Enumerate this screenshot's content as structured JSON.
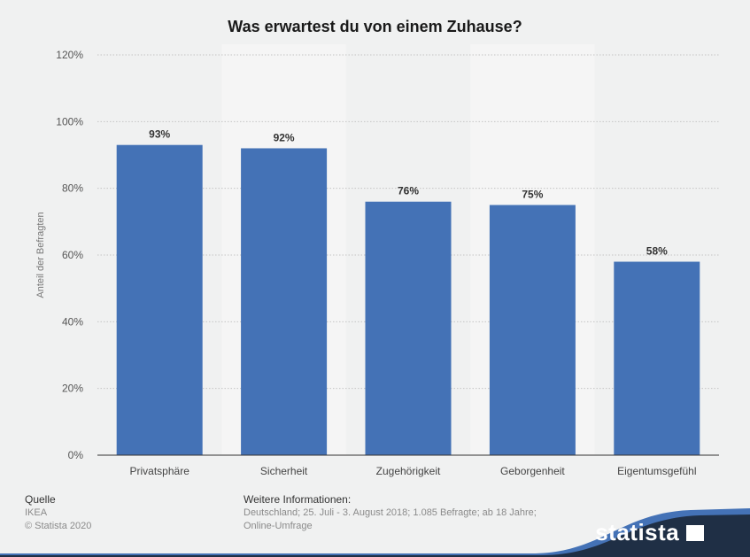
{
  "chart_data": {
    "type": "bar",
    "title": "Was erwartest du von einem Zuhause?",
    "xlabel": "",
    "ylabel": "Anteil der Befragten",
    "categories": [
      "Privatsphäre",
      "Sicherheit",
      "Zugehörigkeit",
      "Geborgenheit",
      "Eigentumsgefühl"
    ],
    "values": [
      93,
      92,
      76,
      75,
      58
    ],
    "data_labels": [
      "93%",
      "92%",
      "76%",
      "75%",
      "58%"
    ],
    "ylim": [
      0,
      120
    ],
    "yticks": [
      0,
      20,
      40,
      60,
      80,
      100,
      120
    ],
    "ytick_labels": [
      "0%",
      "20%",
      "40%",
      "60%",
      "80%",
      "100%",
      "120%"
    ],
    "grid": true,
    "bar_color": "#4472b6"
  },
  "footer": {
    "source_heading": "Quelle",
    "source": "IKEA",
    "copyright": "© Statista 2020",
    "info_heading": "Weitere Informationen:",
    "info_line1": "Deutschland; 25. Juli - 3. August 2018; 1.085 Befragte; ab 18 Jahre;",
    "info_line2": "Online-Umfrage",
    "brand": "statista"
  }
}
